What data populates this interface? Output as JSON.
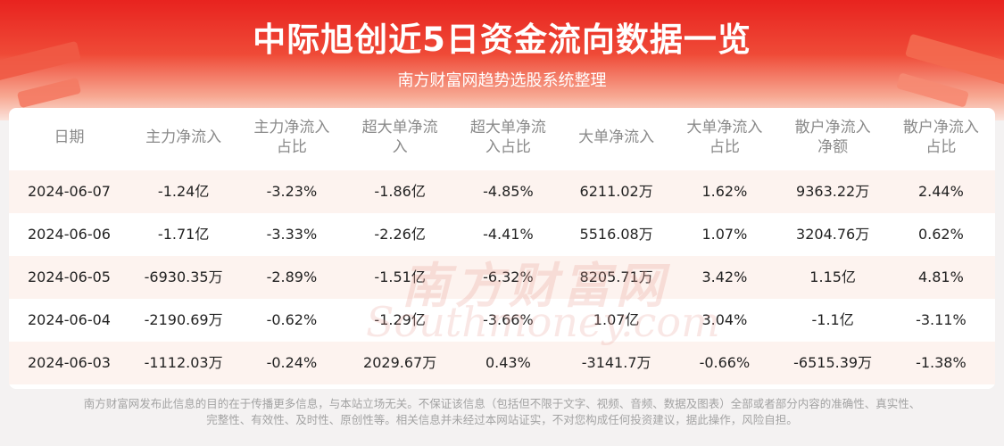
{
  "header": {
    "title": "中际旭创近5日资金流向数据一览",
    "subtitle": "南方财富网趋势选股系统整理"
  },
  "table": {
    "columns": [
      "日期",
      "主力净流入",
      "主力净流入\n占比",
      "超大单净流\n入",
      "超大单净流\n入占比",
      "大单净流入",
      "大单净流入\n占比",
      "散户净流入\n净额",
      "散户净流入\n占比"
    ],
    "rows": [
      [
        "2024-06-07",
        "-1.24亿",
        "-3.23%",
        "-1.86亿",
        "-4.85%",
        "6211.02万",
        "1.62%",
        "9363.22万",
        "2.44%"
      ],
      [
        "2024-06-06",
        "-1.71亿",
        "-3.33%",
        "-2.26亿",
        "-4.41%",
        "5516.08万",
        "1.07%",
        "3204.76万",
        "0.62%"
      ],
      [
        "2024-06-05",
        "-6930.35万",
        "-2.89%",
        "-1.51亿",
        "-6.32%",
        "8205.71万",
        "3.42%",
        "1.15亿",
        "4.81%"
      ],
      [
        "2024-06-04",
        "-2190.69万",
        "-0.62%",
        "-1.29亿",
        "-3.66%",
        "1.07亿",
        "3.04%",
        "-1.1亿",
        "-3.11%"
      ],
      [
        "2024-06-03",
        "-1112.03万",
        "-0.24%",
        "2029.67万",
        "0.43%",
        "-3141.7万",
        "-0.66%",
        "-6515.39万",
        "-1.38%"
      ]
    ]
  },
  "watermark": {
    "cn": "南方财富网",
    "en": "Southmoney.com"
  },
  "footer": {
    "line1": "南方财富网发布此信息的目的在于传播更多信息，与本站立场无关。不保证该信息（包括但不限于文字、视频、音频、数据及图表）全部或者部分内容的准确性、真实性、",
    "line2": "完整性、有效性、及时性、原创性等。相关信息并未经过本网站证实，不对您构成任何投资建议，据此操作，风险自担。"
  }
}
